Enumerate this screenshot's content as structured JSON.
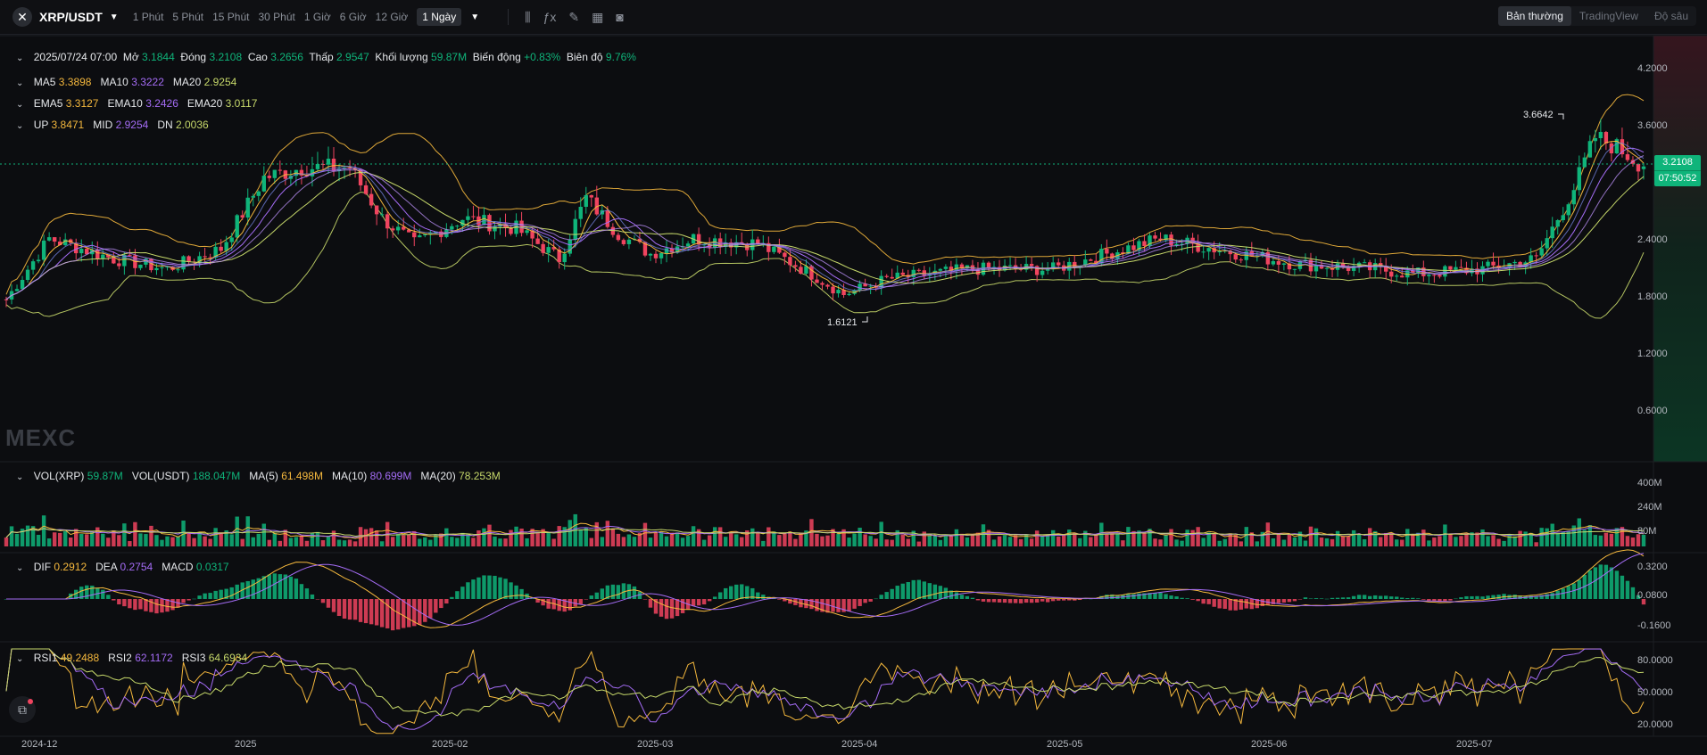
{
  "header": {
    "pair": "XRP/USDT",
    "timeframes": [
      "1 Phút",
      "5 Phút",
      "15 Phút",
      "30 Phút",
      "1 Giờ",
      "6 Giờ",
      "12 Giờ"
    ],
    "active_timeframe": "1 Ngày",
    "view_tabs": [
      "Bản thường",
      "TradingView",
      "Độ sâu"
    ],
    "active_view": "Bản thường"
  },
  "ohlc": {
    "date": "2025/07/24 07:00",
    "open_label": "Mở",
    "open": "3.1844",
    "close_label": "Đóng",
    "close": "3.2108",
    "high_label": "Cao",
    "high": "3.2656",
    "low_label": "Thấp",
    "low": "2.9547",
    "vol_label": "Khối lượng",
    "vol": "59.87M",
    "change_label": "Biến động",
    "change": "+0.83%",
    "amp_label": "Biên độ",
    "amp": "9.76%"
  },
  "ma": {
    "ma5_label": "MA5",
    "ma5": "3.3898",
    "ma10_label": "MA10",
    "ma10": "3.3222",
    "ma20_label": "MA20",
    "ma20": "2.9254"
  },
  "ema": {
    "ema5_label": "EMA5",
    "ema5": "3.3127",
    "ema10_label": "EMA10",
    "ema10": "3.2426",
    "ema20_label": "EMA20",
    "ema20": "3.0117"
  },
  "boll": {
    "up_label": "UP",
    "up": "3.8471",
    "mid_label": "MID",
    "mid": "2.9254",
    "dn_label": "DN",
    "dn": "2.0036"
  },
  "volume": {
    "vol_xrp_label": "VOL(XRP)",
    "vol_xrp": "59.87M",
    "vol_usdt_label": "VOL(USDT)",
    "vol_usdt": "188.047M",
    "ma5_label": "MA(5)",
    "ma5": "61.498M",
    "ma10_label": "MA(10)",
    "ma10": "80.699M",
    "ma20_label": "MA(20)",
    "ma20": "78.253M"
  },
  "macd": {
    "dif_label": "DIF",
    "dif": "0.2912",
    "dea_label": "DEA",
    "dea": "0.2754",
    "macd_label": "MACD",
    "macd": "0.0317"
  },
  "rsi": {
    "rsi1_label": "RSI1",
    "rsi1": "49.2488",
    "rsi2_label": "RSI2",
    "rsi2": "62.1172",
    "rsi3_label": "RSI3",
    "rsi3": "64.6934"
  },
  "price_axis": [
    "4.2000",
    "3.6000",
    "3.0000",
    "2.4000",
    "1.8000",
    "1.2000",
    "0.6000"
  ],
  "volume_axis": [
    "400M",
    "240M",
    "80M"
  ],
  "macd_axis": [
    "0.3200",
    "0.0800",
    "-0.1600"
  ],
  "rsi_axis": [
    "80.0000",
    "50.0000",
    "20.0000"
  ],
  "date_axis": [
    "2024-12",
    "2025",
    "2025-02",
    "2025-03",
    "2025-04",
    "2025-05",
    "2025-06",
    "2025-07"
  ],
  "current_price": "3.2108",
  "countdown": "07:50:52",
  "high_marker": "3.6642",
  "low_marker": "1.6121",
  "watermark": "MEXC",
  "colors": {
    "up": "#0fb47a",
    "down": "#f0445f",
    "ma5": "#f5b83d",
    "ma10": "#a46cf5",
    "ma20": "#c6d86a",
    "bg": "#0c0d10"
  },
  "chart_data": {
    "type": "candlestick",
    "price_range": [
      0.3,
      4.5
    ],
    "monthly_closes": {
      "2024-12": 2.3,
      "2025-01": 3.1,
      "2025-02": 2.2,
      "2025-03": 2.3,
      "2025-04": 2.1,
      "2025-05": 2.3,
      "2025-06": 2.2,
      "2025-07": 3.2108
    },
    "last_candle": {
      "open": 3.1844,
      "high": 3.2656,
      "low": 2.9547,
      "close": 3.2108
    },
    "high_point": 3.6642,
    "low_point": 1.6121
  }
}
